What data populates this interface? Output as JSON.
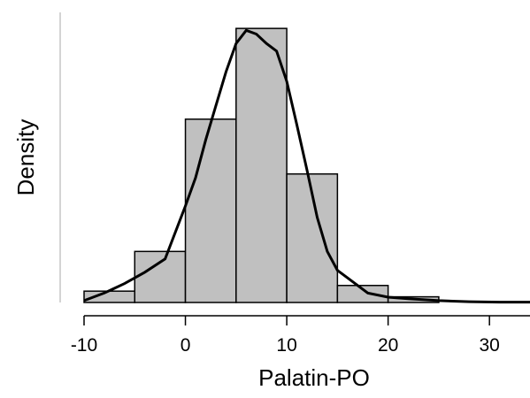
{
  "chart_data": {
    "type": "bar",
    "title": "",
    "xlabel": "Palatin-PO",
    "ylabel": "Density",
    "xlim": [
      -10,
      34
    ],
    "ylim": [
      0,
      0.073
    ],
    "grid": false,
    "x_ticks": [
      -10,
      0,
      10,
      20,
      30
    ],
    "x_tick_labels": [
      "-10",
      "0",
      "10",
      "20",
      "30"
    ],
    "bins": [
      {
        "start": -10,
        "end": -5,
        "density": 0.003
      },
      {
        "start": -5,
        "end": 0,
        "density": 0.0135
      },
      {
        "start": 0,
        "end": 5,
        "density": 0.0485
      },
      {
        "start": 5,
        "end": 10,
        "density": 0.0725
      },
      {
        "start": 10,
        "end": 15,
        "density": 0.034
      },
      {
        "start": 15,
        "end": 20,
        "density": 0.0045
      },
      {
        "start": 20,
        "end": 25,
        "density": 0.0015
      }
    ],
    "density_curve": {
      "x": [
        -10,
        -8,
        -6,
        -4,
        -2,
        0,
        1,
        2,
        3,
        4,
        5,
        6,
        7,
        8,
        9,
        10,
        11,
        12,
        13,
        14,
        15,
        16,
        17,
        18,
        20,
        22,
        25,
        28,
        31,
        34
      ],
      "y": [
        0.0005,
        0.0025,
        0.005,
        0.008,
        0.0115,
        0.0255,
        0.033,
        0.043,
        0.052,
        0.061,
        0.0685,
        0.072,
        0.071,
        0.0685,
        0.0665,
        0.0585,
        0.047,
        0.035,
        0.0225,
        0.0135,
        0.0085,
        0.0065,
        0.0045,
        0.0025,
        0.0014,
        0.001,
        0.0005,
        0.0002,
        0.0001,
        0.0001
      ]
    }
  }
}
